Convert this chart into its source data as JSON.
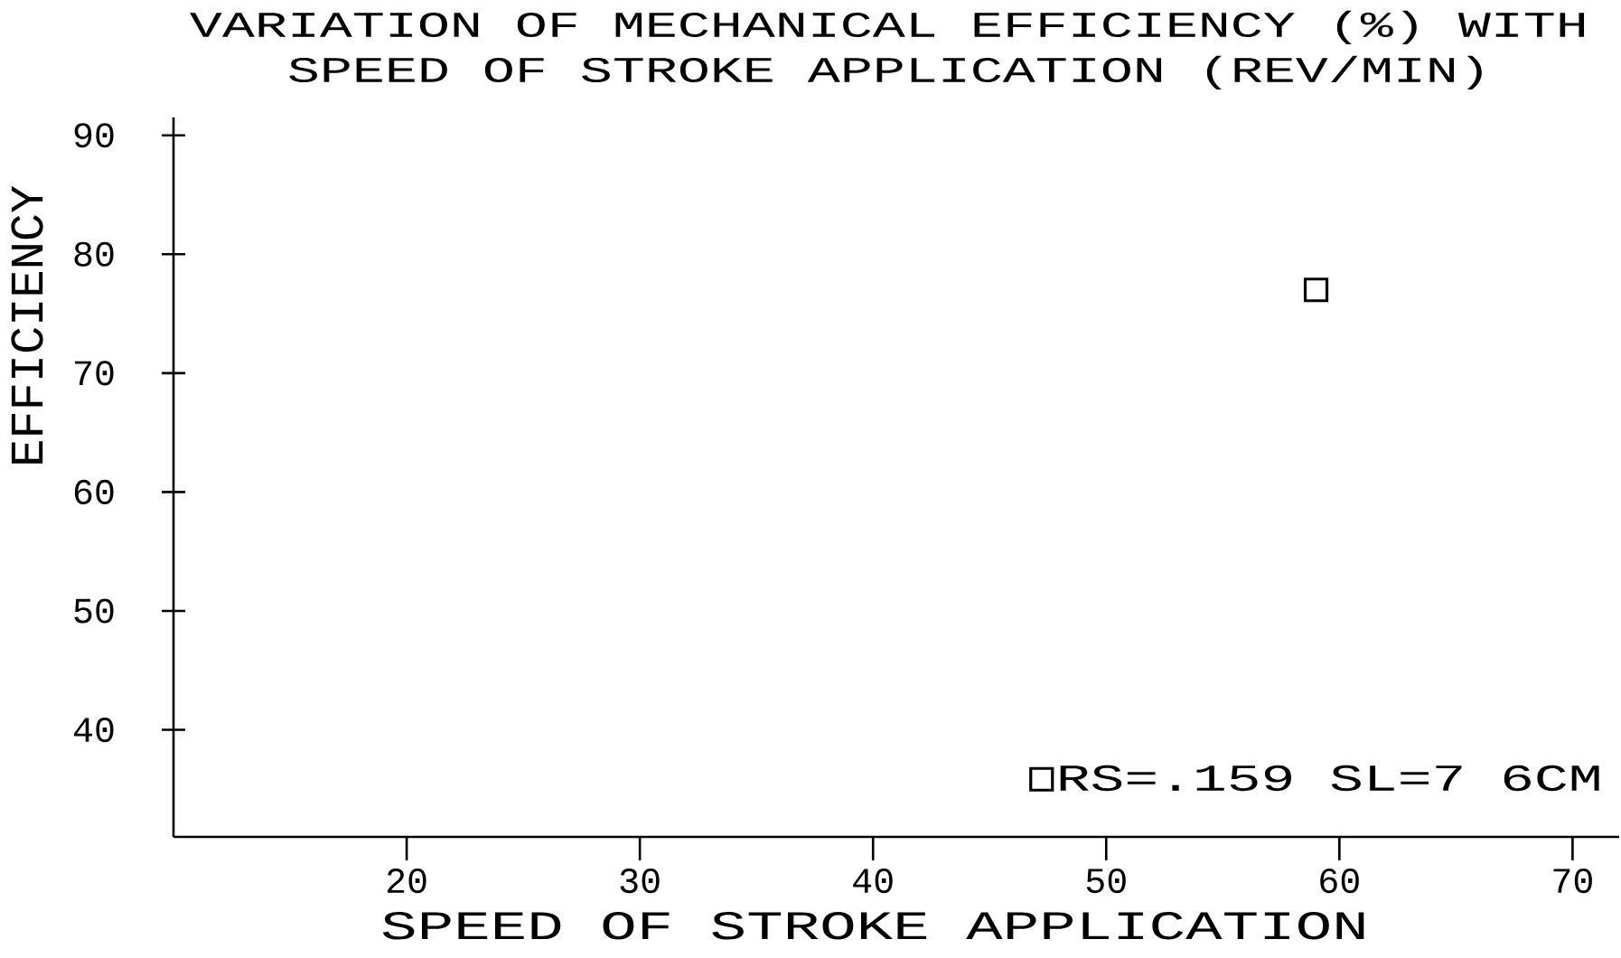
{
  "chart_data": {
    "type": "scatter",
    "title": "VARIATION OF MECHANICAL EFFICIENCY (%) WITH SPEED OF STROKE APPLICATION (REV/MIN)",
    "xlabel": "SPEED OF STROKE APPLICATION",
    "ylabel": "EFFICIENCY",
    "x": [
      59
    ],
    "series": [
      {
        "name": "RS=.159 SL=7 6CM",
        "color": "#000000",
        "values": [
          77
        ]
      }
    ],
    "xlim": [
      10,
      72
    ],
    "ylim": [
      31,
      91.5
    ],
    "xticks": [
      20,
      30,
      40,
      50,
      60,
      70
    ],
    "yticks": [
      40,
      50,
      60,
      70,
      80,
      90
    ],
    "legend": "bottom right",
    "marker": "square"
  }
}
